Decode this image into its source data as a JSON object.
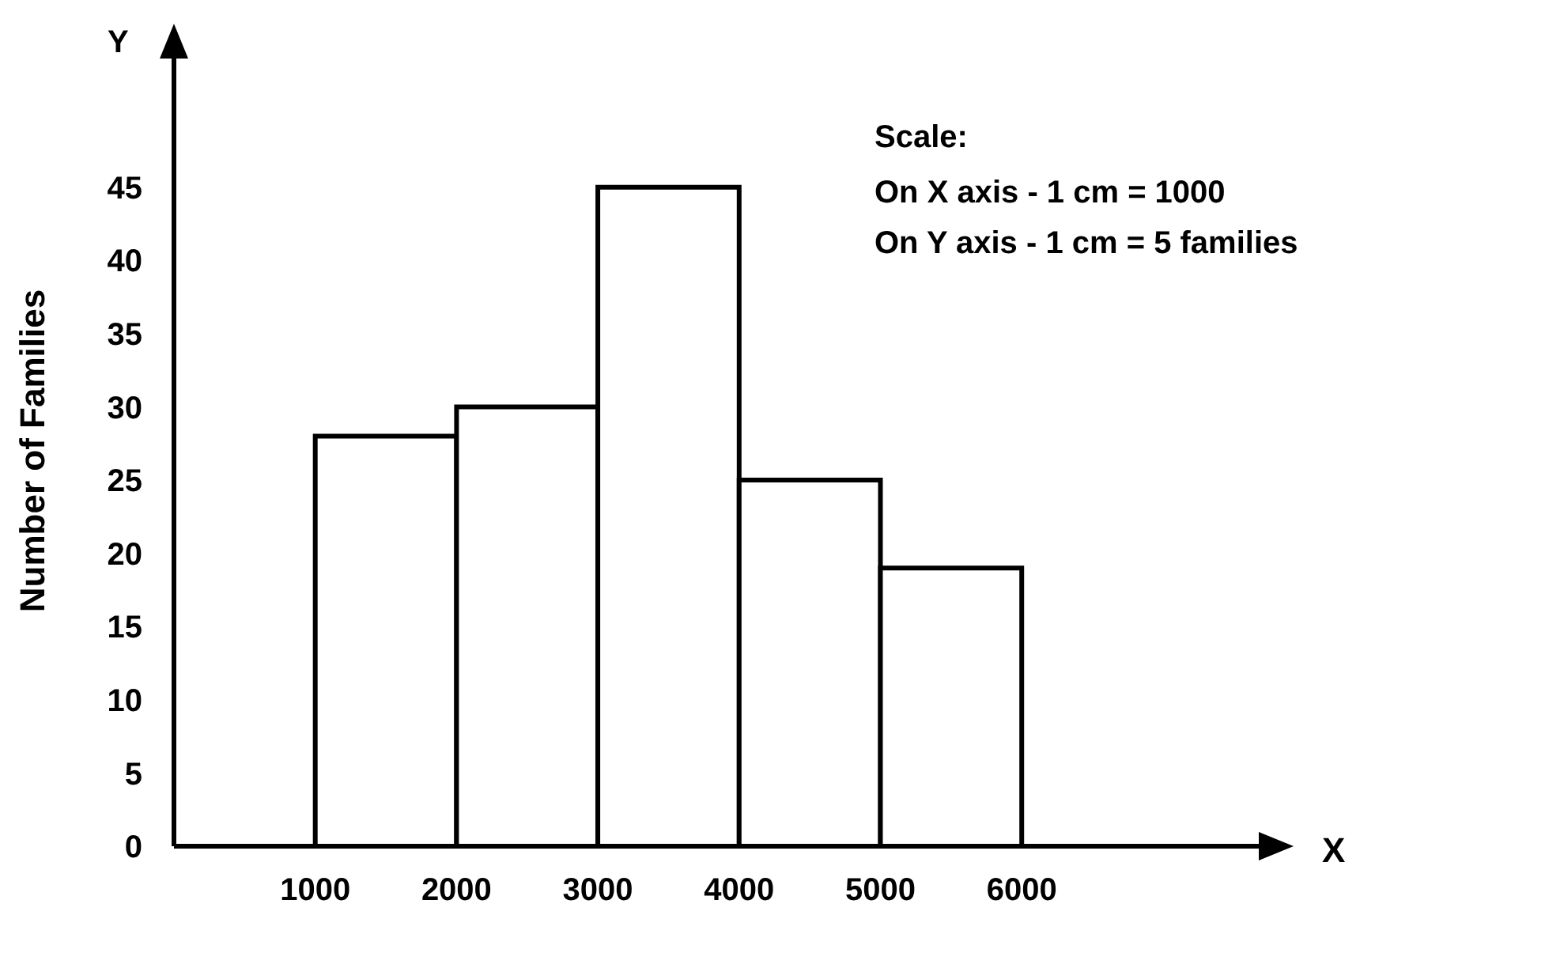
{
  "chart_data": {
    "type": "histogram",
    "xlabel": "X",
    "ylabel": "Number of Families",
    "annotations": [
      "Scale:",
      "On X axis - 1 cm = 1000",
      "On Y axis - 1 cm = 5 families",
      "Y"
    ],
    "bins": [
      1000,
      2000,
      3000,
      4000,
      5000,
      6000
    ],
    "values": [
      28,
      30,
      45,
      25,
      19
    ],
    "color": "#ffffff",
    "xlim": [
      0,
      7700
    ],
    "xticks": [
      1000,
      2000,
      3000,
      4000,
      5000,
      6000
    ],
    "ylim": [
      0,
      54
    ],
    "yticks": [
      0,
      5,
      10,
      15,
      20,
      25,
      30,
      35,
      40,
      45
    ],
    "grid": false
  }
}
